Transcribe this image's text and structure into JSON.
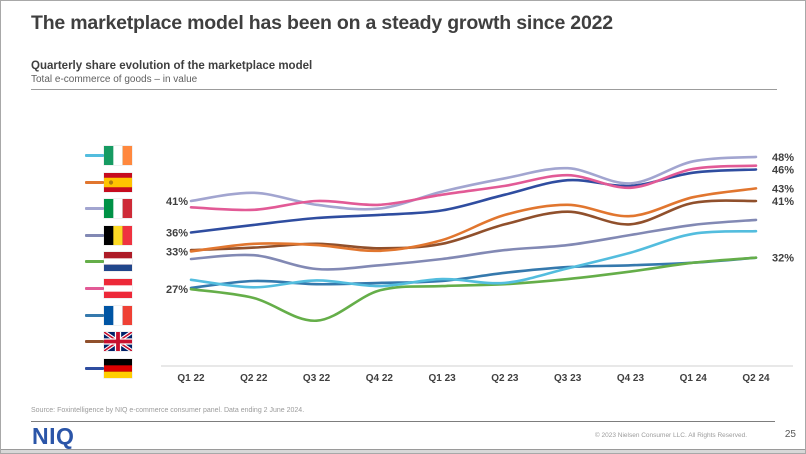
{
  "slide": {
    "title": "The marketplace model has been on a steady growth since 2022",
    "subtitle": "Quarterly share evolution of the marketplace model",
    "subtitle2": "Total e-commerce of goods – in value",
    "source": "Source: Foxintelligence by NIQ e-commerce consumer panel. Data ending 2 June 2024.",
    "logo": "NIQ",
    "copyright": "© 2023 Nielsen Consumer LLC. All Rights Reserved.",
    "page_number": "25"
  },
  "colors": {
    "title_gray": "#3f3f3f",
    "logo_blue": "#2b55a8",
    "axis_line": "#d9d9d9",
    "axis_label": "#404040"
  },
  "chart_data": {
    "type": "line",
    "title": "Quarterly share evolution of the marketplace model",
    "subtitle": "Total e-commerce of goods – in value",
    "unit": "%",
    "categories": [
      "Q1 22",
      "Q2 22",
      "Q3 22",
      "Q4 22",
      "Q1 23",
      "Q2 23",
      "Q3 23",
      "Q4 23",
      "Q1 24",
      "Q2 24"
    ],
    "ylim": [
      20,
      50
    ],
    "grid": false,
    "legend_position": "left-flags",
    "series": [
      {
        "name": "Ireland",
        "flag": "ie",
        "color": "#53bdde",
        "values": [
          28.5,
          27.3,
          28.4,
          27.5,
          28.6,
          28.0,
          30.3,
          32.8,
          35.8,
          36.2
        ]
      },
      {
        "name": "Spain",
        "flag": "es",
        "color": "#e1762f",
        "values": [
          33.0,
          34.2,
          34.0,
          33.1,
          34.8,
          38.8,
          40.4,
          38.6,
          41.6,
          43.0
        ]
      },
      {
        "name": "Italy",
        "flag": "it",
        "color": "#a2a5d0",
        "values": [
          41.0,
          42.3,
          40.4,
          39.8,
          42.5,
          44.6,
          46.2,
          43.8,
          47.3,
          48.0
        ]
      },
      {
        "name": "Belgium",
        "flag": "be",
        "color": "#8289b4",
        "values": [
          31.8,
          32.4,
          30.2,
          30.8,
          31.8,
          33.2,
          34.0,
          35.6,
          37.2,
          38.0
        ]
      },
      {
        "name": "Netherlands",
        "flag": "nl",
        "color": "#65ae49",
        "values": [
          27.0,
          25.6,
          22.0,
          26.8,
          27.5,
          27.8,
          28.6,
          29.8,
          31.2,
          32.0
        ]
      },
      {
        "name": "Austria",
        "flag": "at",
        "color": "#e25a96",
        "values": [
          40.0,
          39.6,
          41.0,
          40.4,
          42.0,
          43.4,
          45.1,
          43.1,
          46.1,
          46.6
        ]
      },
      {
        "name": "France",
        "flag": "fr",
        "color": "#3579ad",
        "values": [
          27.2,
          28.3,
          27.8,
          28.0,
          28.3,
          29.6,
          30.5,
          30.8,
          31.2,
          32.0
        ]
      },
      {
        "name": "United Kingdom",
        "flag": "gb",
        "color": "#90502c",
        "values": [
          33.2,
          33.6,
          34.2,
          33.5,
          34.2,
          37.3,
          39.3,
          37.3,
          40.7,
          41.0
        ]
      },
      {
        "name": "Germany",
        "flag": "de",
        "color": "#2f4da0",
        "values": [
          36.0,
          37.2,
          38.3,
          38.8,
          39.5,
          42.0,
          44.3,
          43.4,
          45.5,
          46.0
        ]
      }
    ],
    "left_labels": [
      {
        "label": "41%",
        "value": 41
      },
      {
        "label": "36%",
        "value": 36
      },
      {
        "label": "33%",
        "value": 33
      },
      {
        "label": "27%",
        "value": 27
      }
    ],
    "right_labels": [
      {
        "label": "48%",
        "value": 48
      },
      {
        "label": "46%",
        "value": 46
      },
      {
        "label": "43%",
        "value": 43
      },
      {
        "label": "41%",
        "value": 41
      },
      {
        "label": "32%",
        "value": 32
      }
    ]
  }
}
